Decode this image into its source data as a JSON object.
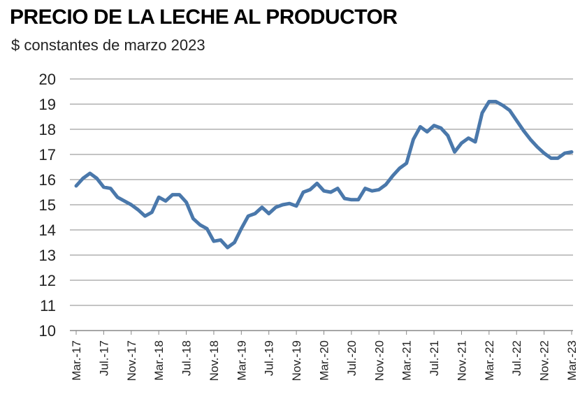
{
  "title": "PRECIO DE LA LECHE AL PRODUCTOR",
  "subtitle": "$ constantes de marzo 2023",
  "line_color": "#4a78ab",
  "grid_color": "#888888",
  "chart_data": {
    "type": "line",
    "title": "PRECIO DE LA LECHE AL PRODUCTOR",
    "subtitle": "$ constantes de marzo 2023",
    "ylim": [
      10,
      20
    ],
    "yticks": [
      "10",
      "11",
      "12",
      "13",
      "14",
      "15",
      "16",
      "17",
      "18",
      "19",
      "20"
    ],
    "grid": "horizontal",
    "xtick_labels": [
      "Mar.-17",
      "Jul.-17",
      "Nov.-17",
      "Mar.-18",
      "Jul.-18",
      "Nov.-18",
      "Mar.-19",
      "Jul.-19",
      "Nov.-19",
      "Mar.-20",
      "Jul.-20",
      "Nov.-20",
      "Mar.-21",
      "Jul.-21",
      "Nov.-21",
      "Mar.-22",
      "Jul.-22",
      "Nov.-22",
      "Mar.-23"
    ],
    "x": [
      "Mar.-17",
      "Abr.-17",
      "May.-17",
      "Jun.-17",
      "Jul.-17",
      "Ago.-17",
      "Sep.-17",
      "Oct.-17",
      "Nov.-17",
      "Dic.-17",
      "Ene.-18",
      "Feb.-18",
      "Mar.-18",
      "Abr.-18",
      "May.-18",
      "Jun.-18",
      "Jul.-18",
      "Ago.-18",
      "Sep.-18",
      "Oct.-18",
      "Nov.-18",
      "Dic.-18",
      "Ene.-19",
      "Feb.-19",
      "Mar.-19",
      "Abr.-19",
      "May.-19",
      "Jun.-19",
      "Jul.-19",
      "Ago.-19",
      "Sep.-19",
      "Oct.-19",
      "Nov.-19",
      "Dic.-19",
      "Ene.-20",
      "Feb.-20",
      "Mar.-20",
      "Abr.-20",
      "May.-20",
      "Jun.-20",
      "Jul.-20",
      "Ago.-20",
      "Sep.-20",
      "Oct.-20",
      "Nov.-20",
      "Dic.-20",
      "Ene.-21",
      "Feb.-21",
      "Mar.-21",
      "Abr.-21",
      "May.-21",
      "Jun.-21",
      "Jul.-21",
      "Ago.-21",
      "Sep.-21",
      "Oct.-21",
      "Nov.-21",
      "Dic.-21",
      "Ene.-22",
      "Feb.-22",
      "Mar.-22",
      "Abr.-22",
      "May.-22",
      "Jun.-22",
      "Jul.-22",
      "Ago.-22",
      "Sep.-22",
      "Oct.-22",
      "Nov.-22",
      "Dic.-22",
      "Ene.-23",
      "Feb.-23",
      "Mar.-23"
    ],
    "series": [
      {
        "values": [
          15.75,
          16.05,
          16.25,
          16.05,
          15.7,
          15.65,
          15.3,
          15.15,
          15.0,
          14.8,
          14.55,
          14.7,
          15.3,
          15.15,
          15.4,
          15.4,
          15.1,
          14.45,
          14.2,
          14.05,
          13.55,
          13.6,
          13.3,
          13.5,
          14.05,
          14.55,
          14.65,
          14.9,
          14.65,
          14.9,
          15.0,
          15.05,
          14.95,
          15.5,
          15.6,
          15.85,
          15.55,
          15.5,
          15.65,
          15.25,
          15.2,
          15.2,
          15.65,
          15.55,
          15.6,
          15.8,
          16.15,
          16.45,
          16.65,
          17.6,
          18.1,
          17.9,
          18.15,
          18.05,
          17.75,
          17.1,
          17.45,
          17.65,
          17.5,
          18.65,
          19.1,
          19.1,
          18.95,
          18.75,
          18.35,
          17.95,
          17.6,
          17.3,
          17.05,
          16.85,
          16.85,
          17.05,
          17.1
        ]
      }
    ]
  }
}
